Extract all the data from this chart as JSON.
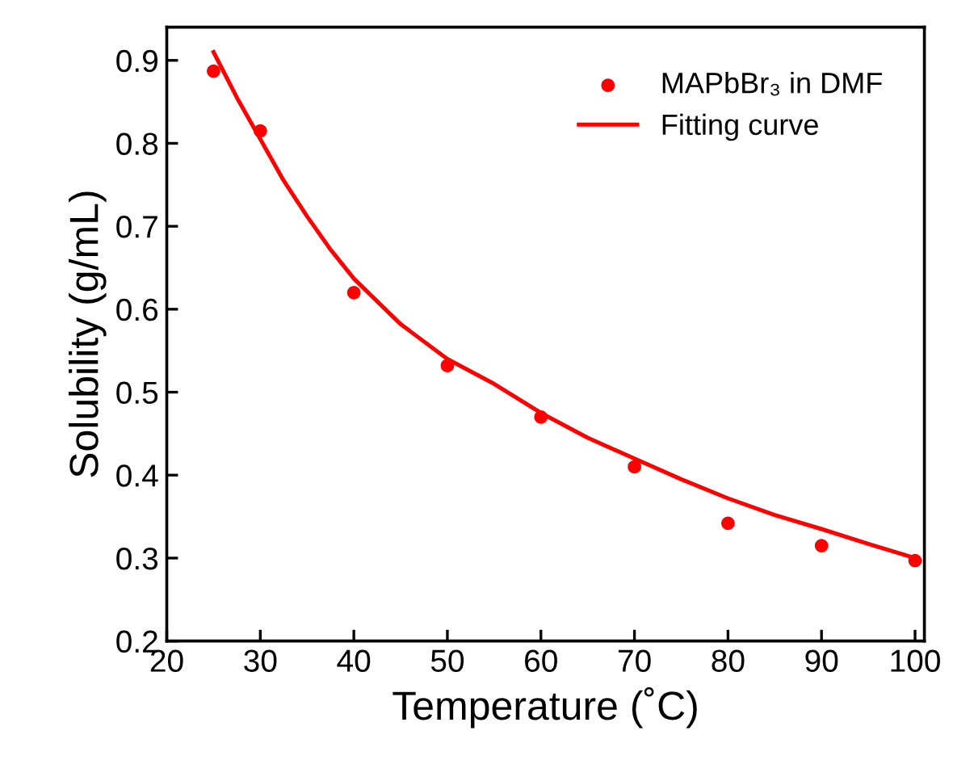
{
  "chart_data": {
    "type": "scatter",
    "xlabel": "Temperature (˚C)",
    "ylabel": "Solubility (g/mL)",
    "xlim": [
      20,
      101
    ],
    "ylim": [
      0.2,
      0.94
    ],
    "xticks": [
      20,
      30,
      40,
      50,
      60,
      70,
      80,
      90,
      100
    ],
    "yticks": [
      0.2,
      0.3,
      0.4,
      0.5,
      0.6,
      0.7,
      0.8,
      0.9
    ],
    "grid": false,
    "legend": "top right",
    "series": [
      {
        "name": "MAPbBr₃ in DMF",
        "color": "#ff0000",
        "marker": "circle",
        "x": [
          25,
          30,
          40,
          50,
          60,
          70,
          80,
          90,
          100
        ],
        "values": [
          0.887,
          0.815,
          0.62,
          0.532,
          0.47,
          0.41,
          0.342,
          0.315,
          0.297
        ]
      },
      {
        "name": "Fitting curve",
        "type": "line",
        "color": "#ff0000",
        "line_style": "solid",
        "x": [
          25,
          27.5,
          30,
          32.5,
          35,
          37.5,
          40,
          45,
          50,
          55,
          60,
          65,
          70,
          75,
          80,
          85,
          90,
          95,
          100
        ],
        "values": [
          0.91,
          0.855,
          0.805,
          0.755,
          0.712,
          0.672,
          0.637,
          0.582,
          0.54,
          0.51,
          0.475,
          0.445,
          0.42,
          0.395,
          0.372,
          0.352,
          0.335,
          0.317,
          0.3
        ]
      }
    ]
  }
}
